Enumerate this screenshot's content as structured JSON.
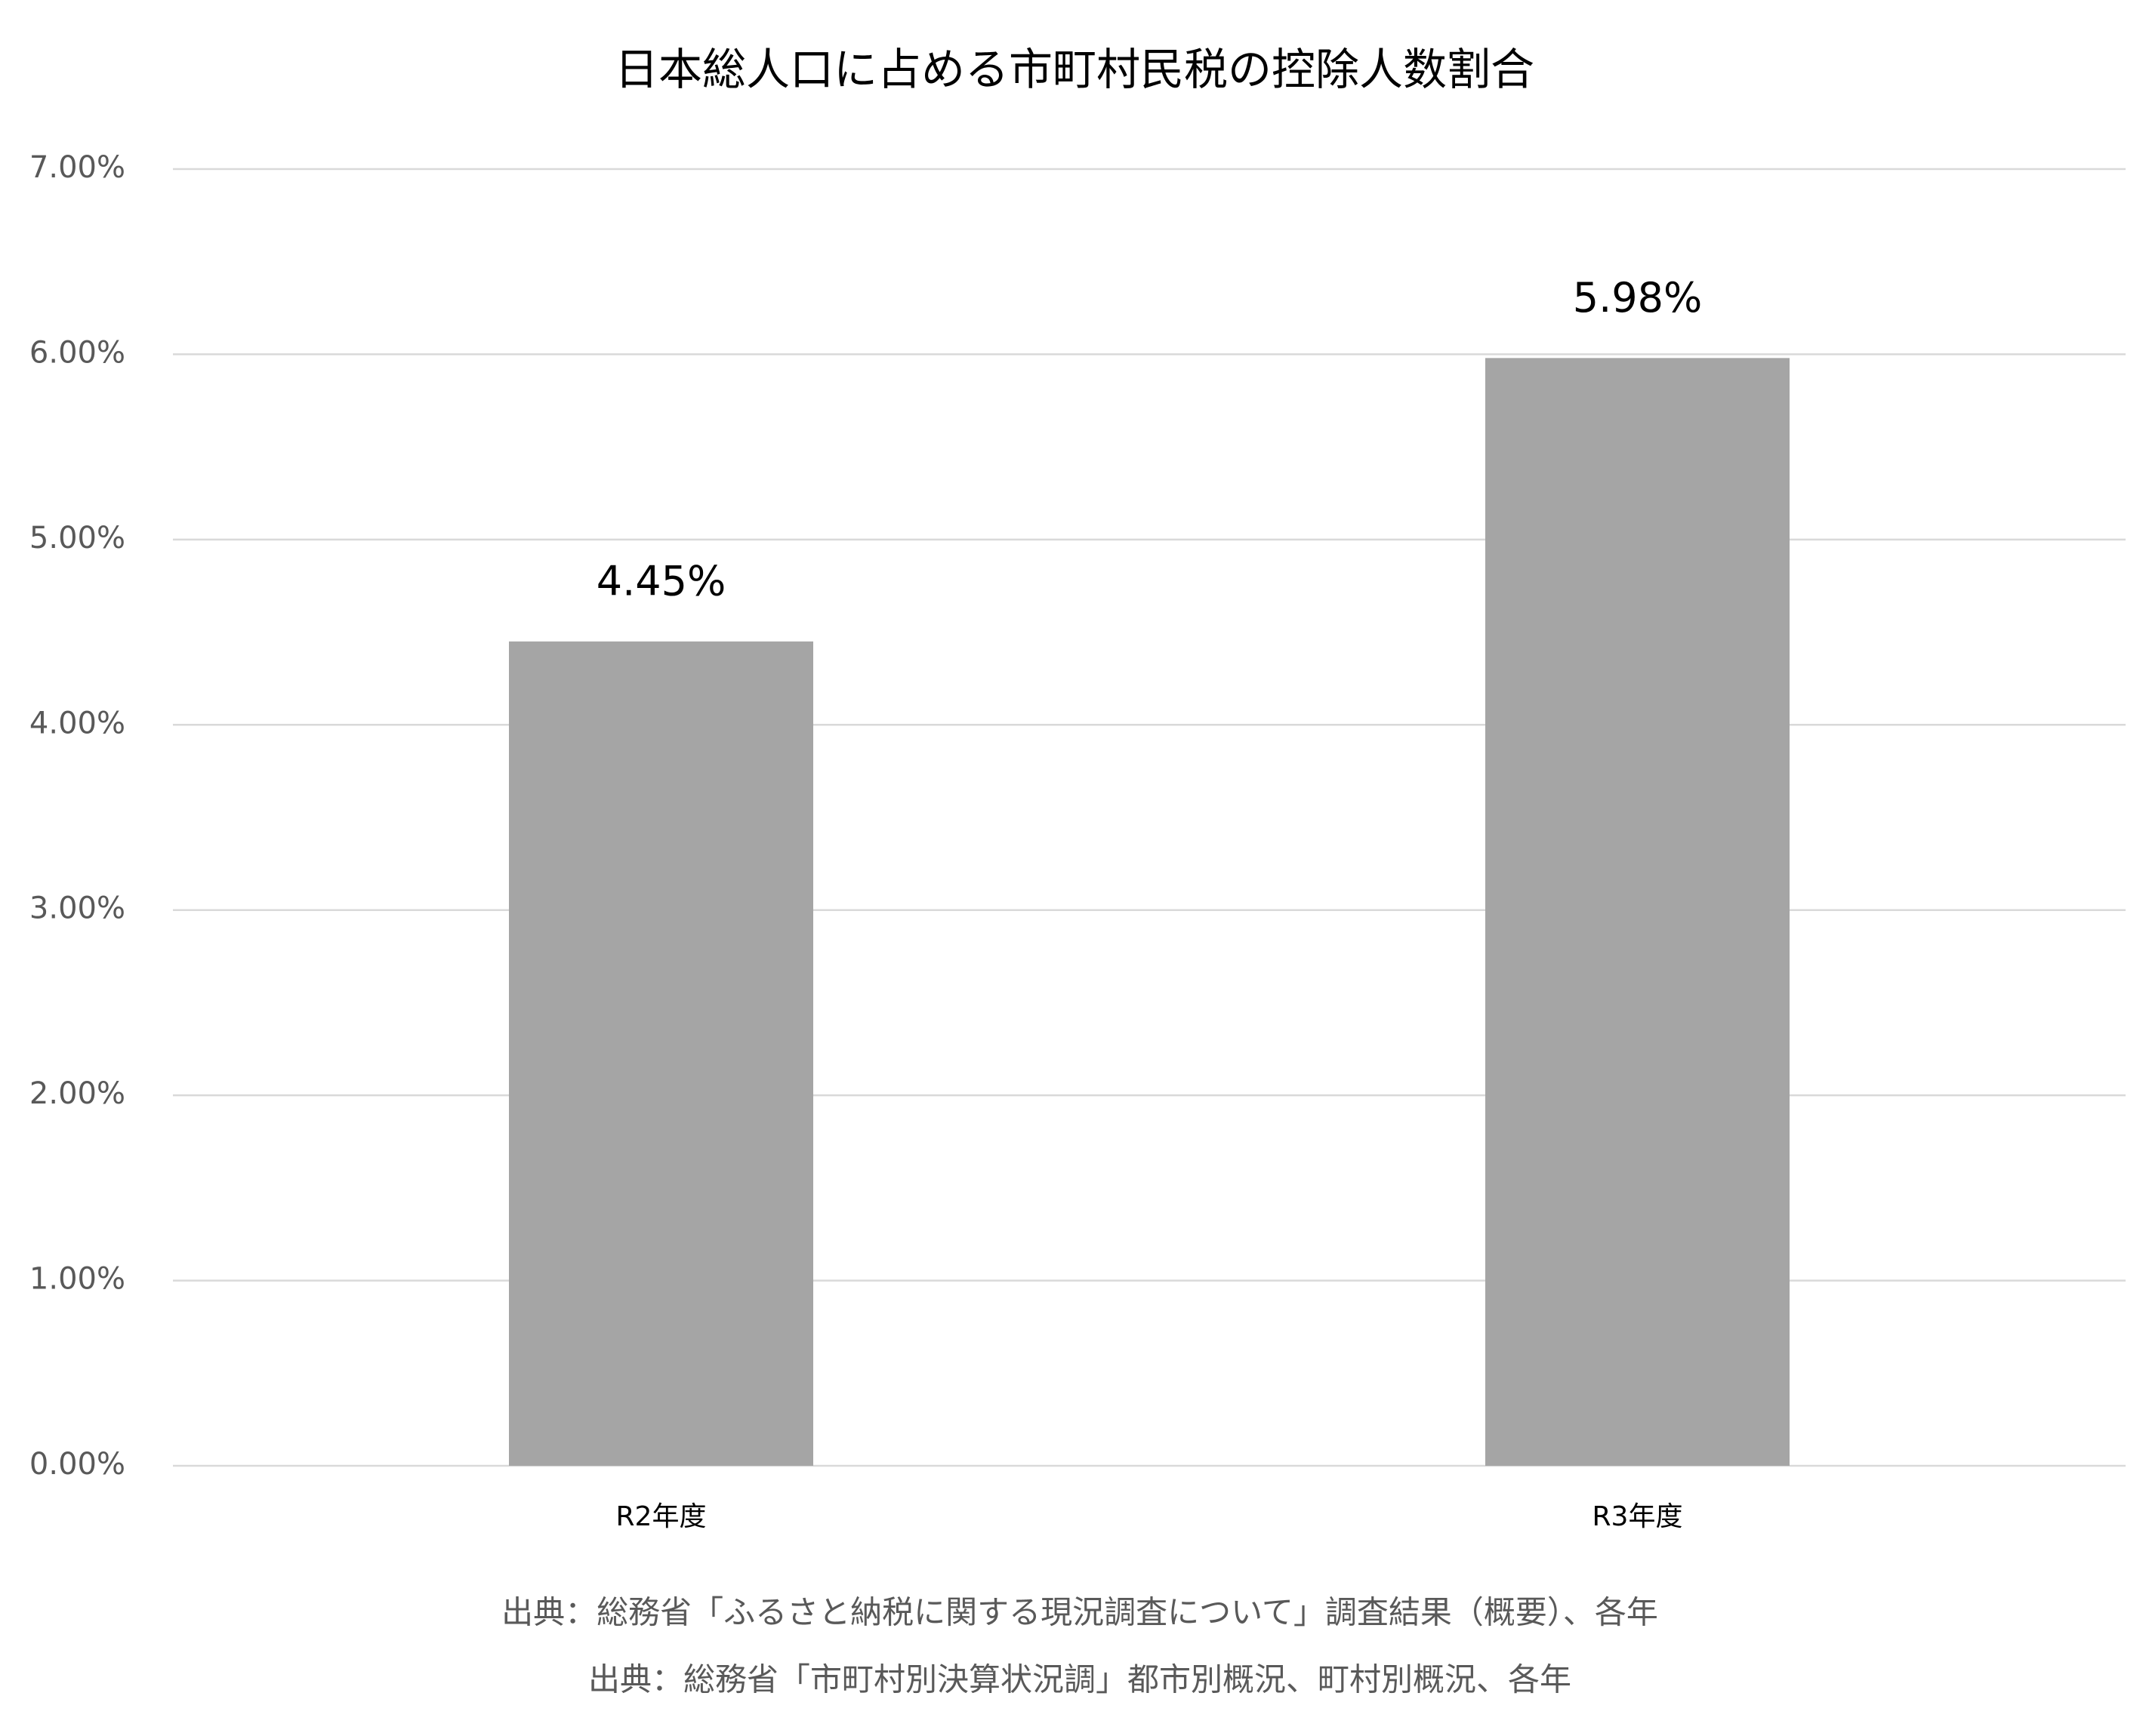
{
  "chart_data": {
    "type": "bar",
    "title": "日本総人口に占める市町村民税の控除人数割合",
    "categories": [
      "R2年度",
      "R3年度"
    ],
    "values": [
      4.45,
      5.98
    ],
    "value_labels": [
      "4.45%",
      "5.98%"
    ],
    "color": "#a5a5a5",
    "ylim": [
      0,
      7
    ],
    "yticks": [
      {
        "value": 0,
        "label": "0.00%"
      },
      {
        "value": 1,
        "label": "1.00%"
      },
      {
        "value": 2,
        "label": "2.00%"
      },
      {
        "value": 3,
        "label": "3.00%"
      },
      {
        "value": 4,
        "label": "4.00%"
      },
      {
        "value": 5,
        "label": "5.00%"
      },
      {
        "value": 6,
        "label": "6.00%"
      },
      {
        "value": 7,
        "label": "7.00%"
      }
    ],
    "grid": true,
    "notes": [
      "出典：総務省「ふるさと納税に関する現況調査について」調査結果（概要）、各年",
      "出典：総務省「市町村別決算状況調」都市別概況、町村別概況、各年"
    ]
  }
}
